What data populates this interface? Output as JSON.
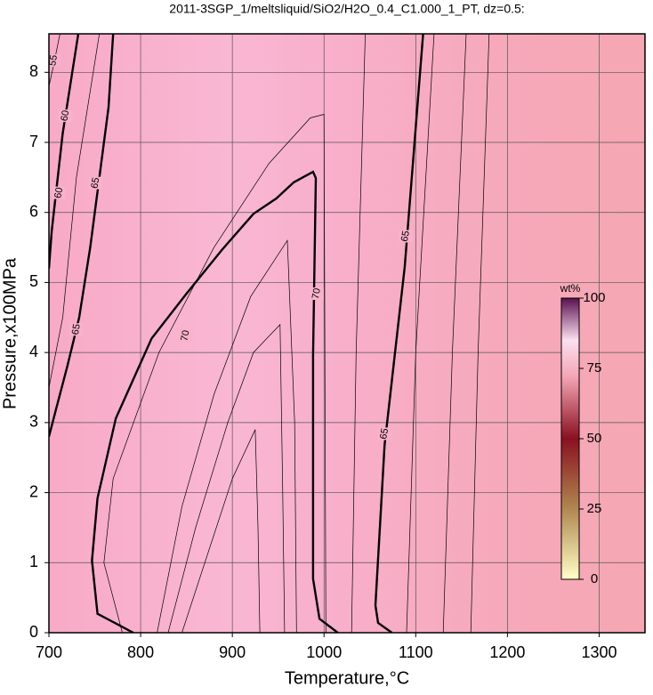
{
  "chart_data": {
    "type": "contour",
    "title": "2011-3SGP_1/meltsliquid/SiO2/H2O_0.4_C1.000_1_PT, dz=0.5:",
    "x_label": "Temperature,°C",
    "y_label": "Pressure,x100MPa",
    "xlim": [
      700,
      1350
    ],
    "ylim": [
      0,
      8.55
    ],
    "xticks": [
      700,
      800,
      900,
      1000,
      1100,
      1200,
      1300
    ],
    "yticks": [
      0,
      1,
      2,
      3,
      4,
      5,
      6,
      7,
      8
    ],
    "grid": true,
    "colorbar": {
      "label": "wt%",
      "lim": [
        0,
        100
      ],
      "ticks": [
        0,
        25,
        50,
        75,
        100
      ]
    },
    "bold_contours": [
      {
        "x": [
          770,
          765,
          755,
          745,
          733,
          720,
          708,
          700
        ],
        "y": [
          8.55,
          7.5,
          6.5,
          5.5,
          4.5,
          3.8,
          3.2,
          2.8
        ]
      },
      {
        "x": [
          792,
          753,
          747,
          753,
          773,
          812,
          850,
          889,
          923,
          948,
          967,
          988,
          991,
          988,
          988,
          995,
          1015
        ],
        "y": [
          0,
          0.27,
          1.03,
          1.92,
          3.06,
          4.2,
          4.84,
          5.47,
          5.98,
          6.2,
          6.43,
          6.58,
          6.49,
          3.95,
          0.77,
          0.2,
          0
        ]
      },
      {
        "x": [
          1108,
          1088,
          1066,
          1056,
          1059,
          1074
        ],
        "y": [
          8.55,
          5.22,
          2.68,
          0.39,
          0.14,
          0
        ]
      },
      {
        "x": [
          732,
          715,
          703,
          700
        ],
        "y": [
          8.55,
          7.13,
          5.73,
          5.2
        ]
      }
    ],
    "thin_contours": [
      {
        "x": [
          845,
          875,
          900,
          925,
          928,
          930
        ],
        "y": [
          0,
          1.2,
          2.2,
          2.9,
          1.5,
          0
        ]
      },
      {
        "x": [
          830,
          860,
          895,
          923,
          952,
          955,
          957
        ],
        "y": [
          0,
          1.5,
          3.0,
          4.0,
          4.4,
          2,
          0
        ]
      },
      {
        "x": [
          818,
          845,
          880,
          920,
          960,
          968,
          970
        ],
        "y": [
          0,
          1.8,
          3.4,
          4.8,
          5.6,
          3,
          0
        ]
      },
      {
        "x": [
          780,
          760,
          770,
          820,
          880,
          940,
          985,
          1000,
          1002
        ],
        "y": [
          0,
          1,
          2.2,
          4,
          5.5,
          6.7,
          7.35,
          7.4,
          0
        ]
      },
      {
        "x": [
          1030,
          1035,
          1045
        ],
        "y": [
          0,
          4,
          8.55
        ]
      },
      {
        "x": [
          1090,
          1100,
          1120
        ],
        "y": [
          0,
          4,
          8.55
        ]
      },
      {
        "x": [
          1130,
          1140,
          1155
        ],
        "y": [
          0,
          4,
          8.55
        ]
      },
      {
        "x": [
          1160,
          1168,
          1180
        ],
        "y": [
          0,
          4,
          8.55
        ]
      },
      {
        "x": [
          755,
          730,
          715,
          700
        ],
        "y": [
          8.55,
          6.5,
          4.5,
          3.5
        ]
      },
      {
        "x": [
          712,
          705,
          700
        ],
        "y": [
          8.55,
          8.1,
          7.8
        ]
      }
    ],
    "contour_labels": [
      {
        "text": "70",
        "x": 849,
        "y": 4.24
      },
      {
        "text": "70",
        "x": 992,
        "y": 4.84
      },
      {
        "text": "65",
        "x": 1089,
        "y": 5.66
      },
      {
        "text": "65",
        "x": 1066,
        "y": 2.84
      },
      {
        "text": "65",
        "x": 751,
        "y": 6.42
      },
      {
        "text": "65",
        "x": 730,
        "y": 4.33
      },
      {
        "text": "60",
        "x": 711,
        "y": 6.28
      },
      {
        "text": "60",
        "x": 718,
        "y": 7.38
      },
      {
        "text": "55",
        "x": 705,
        "y": 8.17
      }
    ]
  }
}
